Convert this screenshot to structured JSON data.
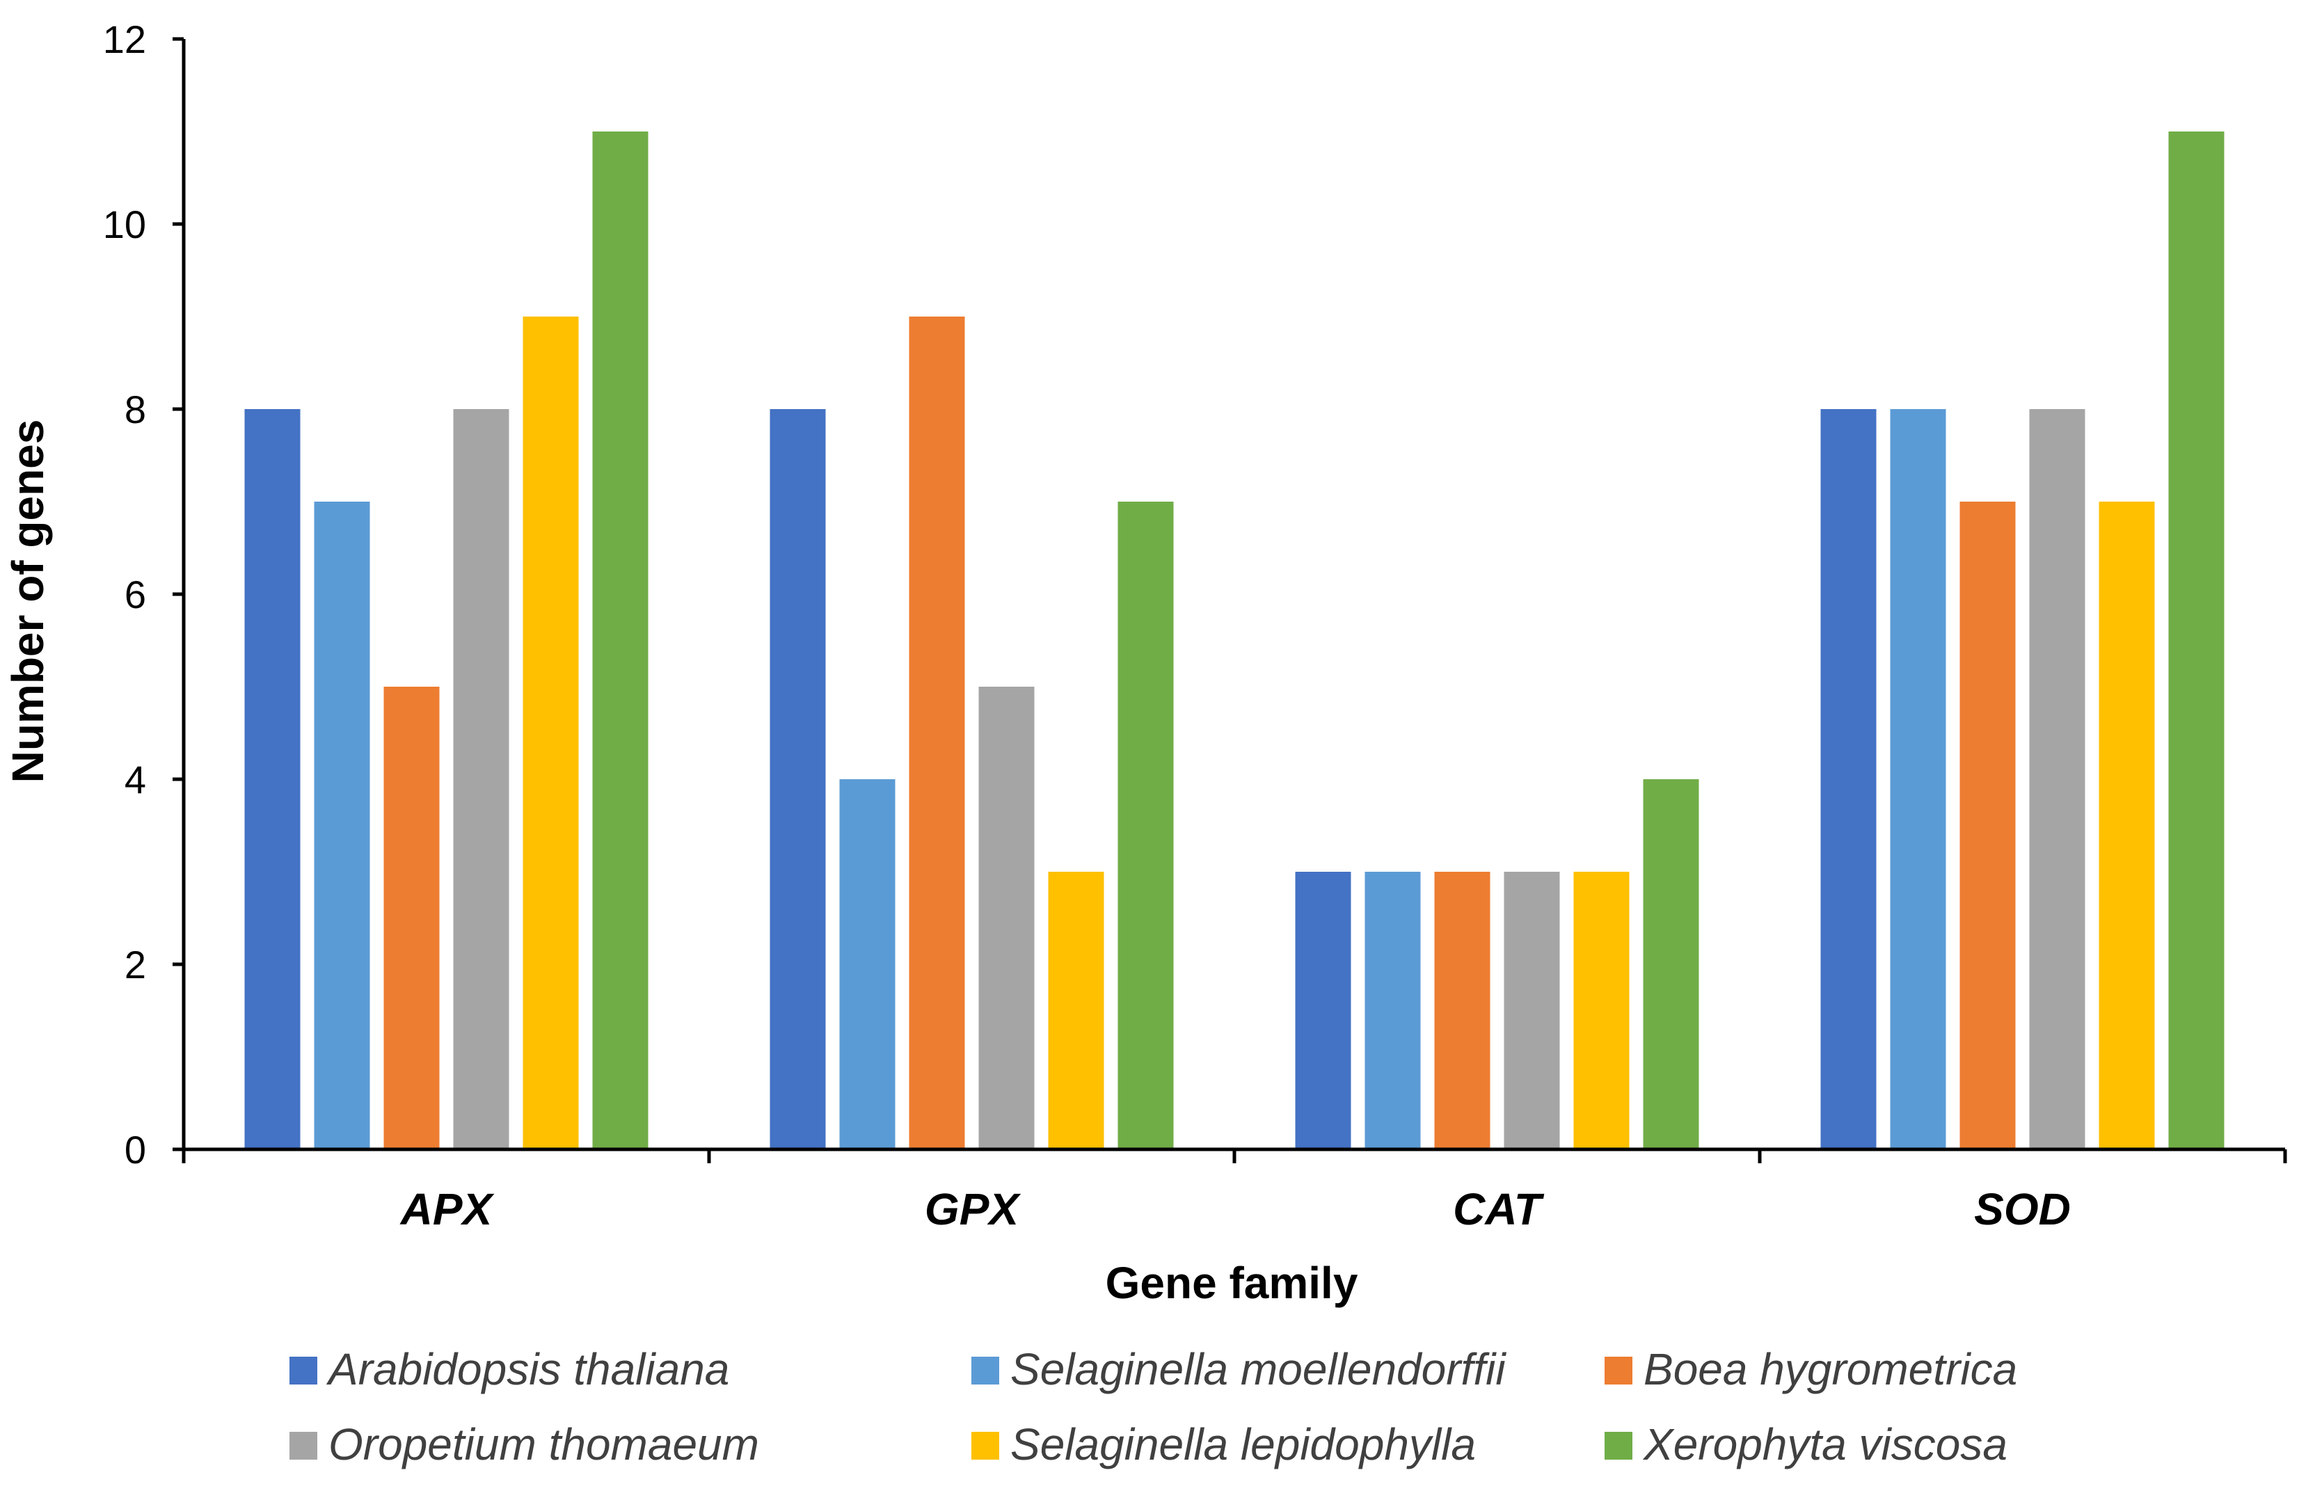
{
  "chart_data": {
    "type": "bar",
    "title": "",
    "xlabel": "Gene family",
    "ylabel": "Number of genes",
    "categories": [
      "APX",
      "GPX",
      "CAT",
      "SOD"
    ],
    "ylim": [
      0,
      12
    ],
    "yticks": [
      0,
      2,
      4,
      6,
      8,
      10,
      12
    ],
    "grid": false,
    "legend_position": "bottom",
    "series": [
      {
        "name": "Arabidopsis thaliana",
        "color": "#4472C4",
        "values": [
          8,
          8,
          3,
          8
        ]
      },
      {
        "name": "Selaginella moellendorffii",
        "color": "#5B9BD5",
        "values": [
          7,
          4,
          3,
          8
        ]
      },
      {
        "name": "Boea hygrometrica",
        "color": "#ED7D31",
        "values": [
          5,
          9,
          3,
          7
        ]
      },
      {
        "name": "Oropetium thomaeum",
        "color": "#A5A5A5",
        "values": [
          8,
          5,
          3,
          8
        ]
      },
      {
        "name": "Selaginella lepidophylla",
        "color": "#FFC000",
        "values": [
          9,
          3,
          3,
          7
        ]
      },
      {
        "name": "Xerophyta viscosa",
        "color": "#70AD47",
        "values": [
          11,
          7,
          4,
          11
        ]
      }
    ]
  }
}
